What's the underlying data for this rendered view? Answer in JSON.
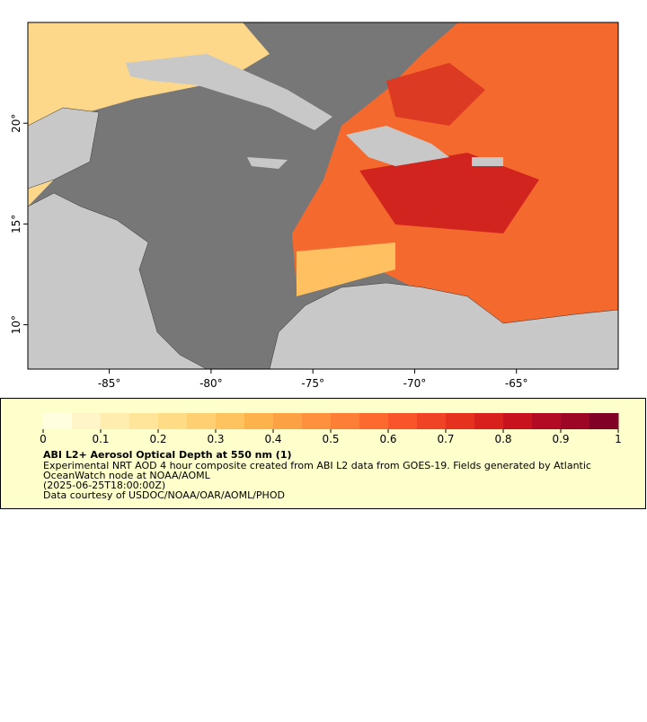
{
  "map": {
    "xlim": [
      -89,
      -60
    ],
    "ylim": [
      7.8,
      25
    ],
    "xticks": [
      {
        "value": -85,
        "label": "-85°"
      },
      {
        "value": -80,
        "label": "-80°"
      },
      {
        "value": -75,
        "label": "-75°"
      },
      {
        "value": -70,
        "label": "-70°"
      },
      {
        "value": -65,
        "label": "-65°"
      }
    ],
    "yticks": [
      {
        "value": 10,
        "label": "10°"
      },
      {
        "value": 15,
        "label": "15°"
      },
      {
        "value": 20,
        "label": "20°"
      }
    ]
  },
  "legend": {
    "colorbar": {
      "lim": [
        0,
        1
      ],
      "ticks": [
        0,
        0.1,
        0.2,
        0.3,
        0.4,
        0.5,
        0.6,
        0.7,
        0.8,
        0.9,
        1
      ],
      "colors": [
        "#ffffe0",
        "#fff5c8",
        "#ffedb0",
        "#fee59a",
        "#fedb85",
        "#fed072",
        "#fec25e",
        "#feb24c",
        "#fda244",
        "#fd913d",
        "#fd7f36",
        "#fc6a30",
        "#f8552b",
        "#f04225",
        "#e6311f",
        "#d9201c",
        "#c8131f",
        "#b40b24",
        "#9e0626",
        "#800026"
      ]
    },
    "title": "ABI L2+ Aerosol Optical Depth at 550 nm (1)",
    "lines": [
      "Experimental NRT AOD 4 hour composite created from ABI L2 data from GOES-19. Fields generated by Atlantic",
      "OceanWatch node at NOAA/AOML",
      "(2025-06-25T18:00:00Z)",
      "Data courtesy of USDOC/NOAA/OAR/AOML/PHOD"
    ]
  }
}
